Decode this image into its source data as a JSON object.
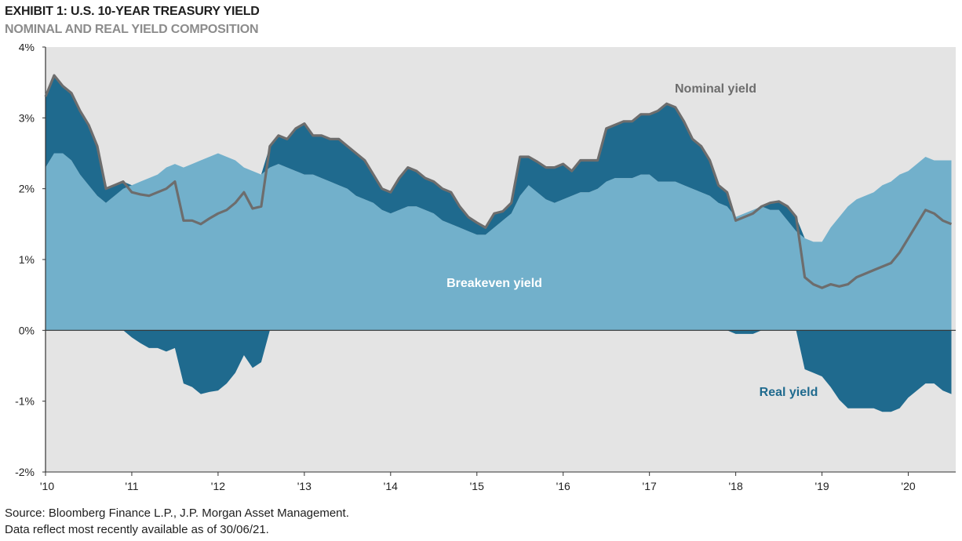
{
  "header": {
    "title": "EXHIBIT 1: U.S. 10-YEAR TREASURY YIELD",
    "subtitle": "NOMINAL AND REAL YIELD COMPOSITION"
  },
  "footer": {
    "source": "Source: Bloomberg Finance L.P., J.P. Morgan Asset Management.",
    "note": "Data reflect most recently available as of 30/06/21."
  },
  "colors": {
    "plot_bg": "#e4e4e4",
    "breakeven": "#72b0cb",
    "real": "#1f6a8e",
    "nominal": "#6d6d6d",
    "axis": "#333333",
    "breakeven_label": "#ffffff",
    "real_label": "#1f6a8e",
    "nominal_label": "#6d6d6d"
  },
  "chart_data": {
    "type": "area",
    "x_tick_labels": [
      "'10",
      "'11",
      "'12",
      "'13",
      "'14",
      "'15",
      "'16",
      "'17",
      "'18",
      "'19",
      "'20"
    ],
    "y_tick_labels": [
      "4%",
      "3%",
      "2%",
      "1%",
      "0%",
      "-1%",
      "-2%"
    ],
    "y_ticks": [
      4,
      3,
      2,
      1,
      0,
      -1,
      -2
    ],
    "ylim": [
      -2,
      4
    ],
    "xlim": [
      2010,
      2020.55
    ],
    "annotations": {
      "nominal": "Nominal yield",
      "breakeven": "Breakeven yield",
      "real": "Real yield"
    },
    "x": [
      2010.0,
      2010.1,
      2010.2,
      2010.3,
      2010.4,
      2010.5,
      2010.6,
      2010.7,
      2010.8,
      2010.9,
      2011.0,
      2011.1,
      2011.2,
      2011.3,
      2011.4,
      2011.5,
      2011.6,
      2011.7,
      2011.8,
      2011.9,
      2012.0,
      2012.1,
      2012.2,
      2012.3,
      2012.4,
      2012.5,
      2012.6,
      2012.7,
      2012.8,
      2012.9,
      2013.0,
      2013.1,
      2013.2,
      2013.3,
      2013.4,
      2013.5,
      2013.6,
      2013.7,
      2013.8,
      2013.9,
      2014.0,
      2014.1,
      2014.2,
      2014.3,
      2014.4,
      2014.5,
      2014.6,
      2014.7,
      2014.8,
      2014.9,
      2015.0,
      2015.1,
      2015.2,
      2015.3,
      2015.4,
      2015.5,
      2015.6,
      2015.7,
      2015.8,
      2015.9,
      2016.0,
      2016.1,
      2016.2,
      2016.3,
      2016.4,
      2016.5,
      2016.6,
      2016.7,
      2016.8,
      2016.9,
      2017.0,
      2017.1,
      2017.2,
      2017.3,
      2017.4,
      2017.5,
      2017.6,
      2017.7,
      2017.8,
      2017.9,
      2018.0,
      2018.1,
      2018.2,
      2018.3,
      2018.4,
      2018.5,
      2018.6,
      2018.7,
      2018.8,
      2018.9,
      2019.0,
      2019.1,
      2019.2,
      2019.3,
      2019.4,
      2019.5,
      2019.6,
      2019.7,
      2019.8,
      2019.9,
      2020.0,
      2020.1,
      2020.2,
      2020.3,
      2020.4,
      2020.5
    ],
    "series": [
      {
        "name": "Nominal yield",
        "values": [
          3.3,
          3.6,
          3.45,
          3.35,
          3.1,
          2.9,
          2.6,
          2.0,
          2.05,
          2.1,
          1.95,
          1.92,
          1.9,
          1.95,
          2.0,
          2.1,
          1.55,
          1.55,
          1.5,
          1.58,
          1.65,
          1.7,
          1.8,
          1.95,
          1.72,
          1.75,
          2.6,
          2.75,
          2.7,
          2.85,
          2.92,
          2.75,
          2.75,
          2.7,
          2.7,
          2.6,
          2.5,
          2.4,
          2.2,
          2.0,
          1.95,
          2.15,
          2.3,
          2.25,
          2.15,
          2.1,
          2.0,
          1.95,
          1.75,
          1.6,
          1.52,
          1.45,
          1.65,
          1.68,
          1.8,
          2.45,
          2.45,
          2.38,
          2.3,
          2.3,
          2.35,
          2.25,
          2.4,
          2.4,
          2.4,
          2.85,
          2.9,
          2.95,
          2.95,
          3.05,
          3.05,
          3.1,
          3.2,
          3.15,
          2.95,
          2.7,
          2.6,
          2.4,
          2.05,
          1.95,
          1.55,
          1.6,
          1.65,
          1.75,
          1.8,
          1.82,
          1.75,
          1.6,
          0.75,
          0.65,
          0.6,
          0.65,
          0.62,
          0.65,
          0.75,
          0.8,
          0.85,
          0.9,
          0.95,
          1.1,
          1.3,
          1.5,
          1.7,
          1.65,
          1.55,
          1.5
        ]
      },
      {
        "name": "Breakeven yield",
        "values": [
          2.3,
          2.5,
          2.5,
          2.4,
          2.2,
          2.05,
          1.9,
          1.8,
          1.9,
          2.0,
          2.05,
          2.1,
          2.15,
          2.2,
          2.3,
          2.35,
          2.3,
          2.35,
          2.4,
          2.45,
          2.5,
          2.45,
          2.4,
          2.3,
          2.25,
          2.2,
          2.3,
          2.35,
          2.3,
          2.25,
          2.2,
          2.2,
          2.15,
          2.1,
          2.05,
          2.0,
          1.9,
          1.85,
          1.8,
          1.7,
          1.65,
          1.7,
          1.75,
          1.75,
          1.7,
          1.65,
          1.55,
          1.5,
          1.45,
          1.4,
          1.35,
          1.35,
          1.45,
          1.55,
          1.65,
          1.9,
          2.05,
          1.95,
          1.85,
          1.8,
          1.85,
          1.9,
          1.95,
          1.95,
          2.0,
          2.1,
          2.15,
          2.15,
          2.15,
          2.2,
          2.2,
          2.1,
          2.1,
          2.1,
          2.05,
          2.0,
          1.95,
          1.9,
          1.8,
          1.75,
          1.6,
          1.65,
          1.7,
          1.75,
          1.7,
          1.7,
          1.55,
          1.4,
          1.3,
          1.25,
          1.25,
          1.45,
          1.6,
          1.75,
          1.85,
          1.9,
          1.95,
          2.05,
          2.1,
          2.2,
          2.25,
          2.35,
          2.45,
          2.4,
          2.4,
          2.4
        ]
      },
      {
        "name": "Real yield",
        "values": [
          1.0,
          1.1,
          0.95,
          0.95,
          0.9,
          0.85,
          0.7,
          0.2,
          0.15,
          0.1,
          -0.1,
          -0.18,
          -0.25,
          -0.25,
          -0.3,
          -0.25,
          -0.75,
          -0.8,
          -0.9,
          -0.87,
          -0.85,
          -0.75,
          -0.6,
          -0.35,
          -0.53,
          -0.45,
          0.3,
          0.4,
          0.4,
          0.6,
          0.72,
          0.55,
          0.6,
          0.6,
          0.65,
          0.6,
          0.6,
          0.55,
          0.4,
          0.3,
          0.3,
          0.45,
          0.55,
          0.5,
          0.45,
          0.45,
          0.45,
          0.45,
          0.3,
          0.2,
          0.17,
          0.1,
          0.2,
          0.13,
          0.15,
          0.55,
          0.4,
          0.43,
          0.45,
          0.5,
          0.5,
          0.35,
          0.45,
          0.45,
          0.4,
          0.75,
          0.75,
          0.8,
          0.8,
          0.85,
          0.85,
          1.0,
          1.1,
          1.05,
          0.9,
          0.7,
          0.65,
          0.5,
          0.25,
          0.2,
          -0.05,
          -0.05,
          -0.05,
          0.0,
          0.1,
          0.12,
          0.2,
          0.2,
          -0.55,
          -0.6,
          -0.65,
          -0.8,
          -0.98,
          -1.1,
          -1.1,
          -1.1,
          -1.1,
          -1.15,
          -1.15,
          -1.1,
          -0.95,
          -0.85,
          -0.75,
          -0.75,
          -0.85,
          -0.9
        ]
      }
    ]
  }
}
